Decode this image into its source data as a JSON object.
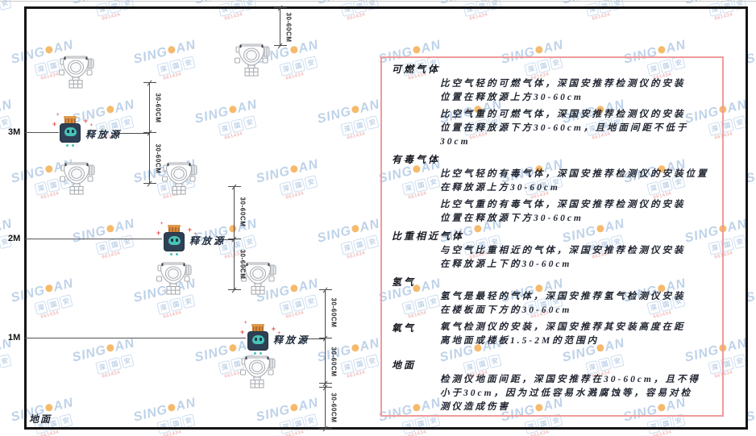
{
  "watermark": {
    "brand_left": "SING",
    "brand_right": "AN",
    "cn": [
      "深",
      "国",
      "安"
    ],
    "code": "661434",
    "brand_color": "#a9c3e2",
    "dot_color": "#f2a33a",
    "code_color": "#eaa3a3"
  },
  "diagram": {
    "height_labels": [
      "3M",
      "2M",
      "1M"
    ],
    "ground_label": "地面",
    "release_source_label": "释放源",
    "dim_label": "30-60CM"
  },
  "panel": {
    "border_color": "#f09b9b",
    "sections": [
      {
        "heading": "可燃气体",
        "paragraphs": [
          "比空气轻的可燃气体，深国安推荐检测仪的安装\n位置在释放源上方30-60cm",
          "比空气重的可燃气体，深国安推荐检测仪的安装\n位置在释放源下方30-60cm，且地面间距不低于\n30cm"
        ]
      },
      {
        "heading": "有毒气体",
        "paragraphs": [
          "比空气轻的有毒气体，深国安推荐检测仪的安装位置\n在释放源上方30-60cm",
          "比空气重的有毒气体，深国安推荐检测仪的安装\n位置在释放源下方30-60cm"
        ]
      },
      {
        "heading": "比重相近气体",
        "paragraphs": [
          "与空气比重相近的气体，深国安推荐检测仪安装\n在释放源上下的30-60cm"
        ]
      },
      {
        "heading": "氢气",
        "paragraphs": [
          "氢气是最轻的气体，深国安推荐氢气检测仪安装\n在楼板面下方的30-60cm"
        ]
      },
      {
        "heading": "氧气",
        "paragraphs": [
          "氧气检测仪的安装，深国安推荐其安装高度在距\n离地面或楼板1.5-2M的范围内"
        ]
      },
      {
        "heading": "地面",
        "paragraphs": [
          "检测仪地面间距，深国安推荐在30-60cm，且不得\n小于30cm，因为过低容易水溅腐蚀等，容易对检\n测仪造成伤害"
        ]
      }
    ]
  }
}
